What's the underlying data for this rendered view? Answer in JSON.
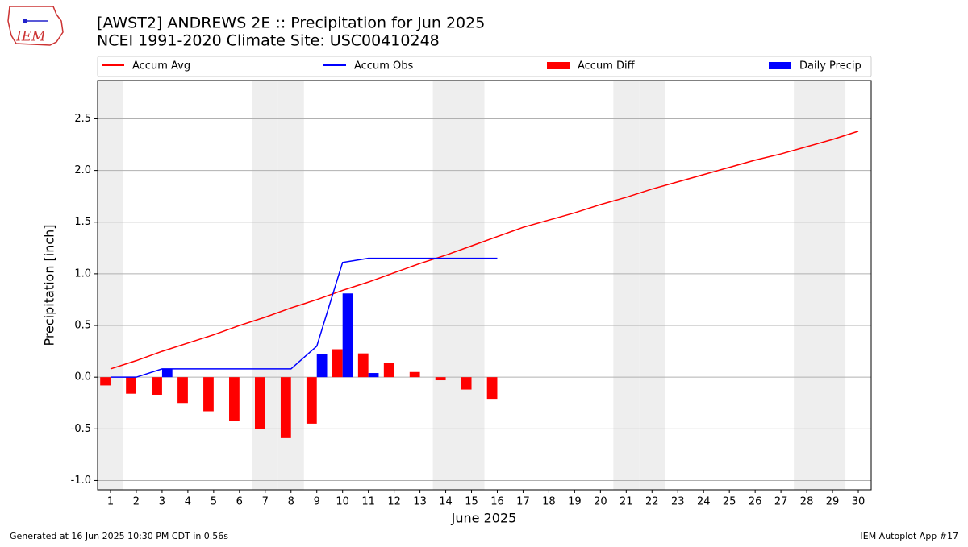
{
  "chart_data": {
    "type": "combo",
    "title": "[AWST2] ANDREWS 2E :: Precipitation for Jun 2025",
    "subtitle": "NCEI 1991-2020 Climate Site: USC00410248",
    "logo_text": "IEM",
    "xlabel": "June 2025",
    "ylabel": "Precipitation [inch]",
    "footer_left": "Generated at 16 Jun 2025 10:30 PM CDT in 0.56s",
    "footer_right": "IEM Autoplot App #17",
    "x": [
      1,
      2,
      3,
      4,
      5,
      6,
      7,
      8,
      9,
      10,
      11,
      12,
      13,
      14,
      15,
      16,
      17,
      18,
      19,
      20,
      21,
      22,
      23,
      24,
      25,
      26,
      27,
      28,
      29,
      30
    ],
    "xlim": [
      0.5,
      30.5
    ],
    "xticks": [
      1,
      2,
      3,
      4,
      5,
      6,
      7,
      8,
      9,
      10,
      11,
      12,
      13,
      14,
      15,
      16,
      17,
      18,
      19,
      20,
      21,
      22,
      23,
      24,
      25,
      26,
      27,
      28,
      29,
      30
    ],
    "ylim": [
      -1.09,
      2.87
    ],
    "yticks": [
      {
        "value": -1,
        "label": "-1.0"
      },
      -0.5,
      {
        "value": 0,
        "label": "0.0"
      },
      0.5,
      {
        "value": 1,
        "label": "1.0"
      },
      1.5,
      {
        "value": 2,
        "label": "2.0"
      },
      2.5
    ],
    "grid": true,
    "shaded_days": [
      1,
      7,
      8,
      14,
      15,
      21,
      22,
      28,
      29
    ],
    "series": [
      {
        "name": "Accum Avg",
        "type": "line",
        "color": "#ff0000",
        "values": [
          0.08,
          0.16,
          0.25,
          0.33,
          0.41,
          0.5,
          0.58,
          0.67,
          0.75,
          0.84,
          0.92,
          1.01,
          1.1,
          1.18,
          1.27,
          1.36,
          1.45,
          1.52,
          1.59,
          1.67,
          1.74,
          1.82,
          1.89,
          1.96,
          2.03,
          2.1,
          2.16,
          2.23,
          2.3,
          2.38
        ]
      },
      {
        "name": "Accum Obs",
        "type": "line",
        "color": "#0000ff",
        "values": [
          0,
          0,
          0.08,
          0.08,
          0.08,
          0.08,
          0.08,
          0.08,
          0.3,
          1.11,
          1.15,
          1.15,
          1.15,
          1.15,
          1.15,
          1.15,
          null,
          null,
          null,
          null,
          null,
          null,
          null,
          null,
          null,
          null,
          null,
          null,
          null,
          null
        ]
      },
      {
        "name": "Accum Diff",
        "type": "bar",
        "side": "left",
        "color": "#ff0000",
        "values": [
          -0.08,
          -0.16,
          -0.17,
          -0.25,
          -0.33,
          -0.42,
          -0.5,
          -0.59,
          -0.45,
          0.27,
          0.23,
          0.14,
          0.05,
          -0.03,
          -0.12,
          -0.21,
          null,
          null,
          null,
          null,
          null,
          null,
          null,
          null,
          null,
          null,
          null,
          null,
          null,
          null
        ]
      },
      {
        "name": "Daily Precip",
        "type": "bar",
        "side": "right",
        "color": "#0000ff",
        "values": [
          0,
          0,
          0.08,
          0,
          0,
          0,
          0,
          0,
          0.22,
          0.81,
          0.04,
          0,
          0,
          0,
          0,
          0,
          null,
          null,
          null,
          null,
          null,
          null,
          null,
          null,
          null,
          null,
          null,
          null,
          null,
          null
        ]
      }
    ]
  }
}
